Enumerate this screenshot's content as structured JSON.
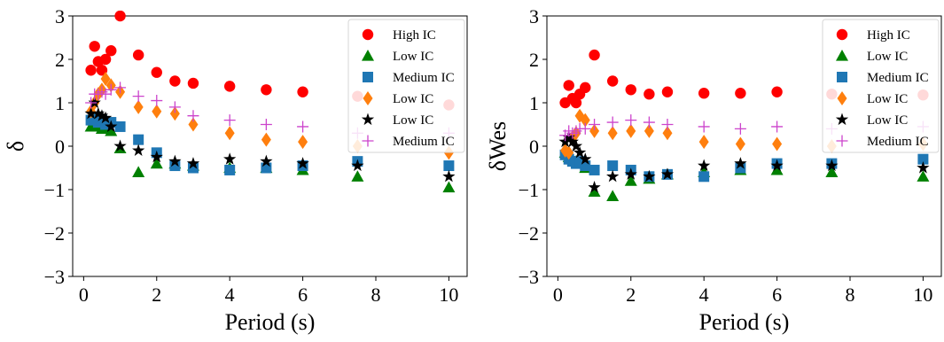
{
  "colors": {
    "High IC": "#ff0000",
    "Low IC": "#008000",
    "Medium IC": "#1f77b4",
    "Low IC orange": "#ff7f0e",
    "Low IC black": "#000000",
    "Medium IC plus": "#cc44cc"
  },
  "chart_data": [
    {
      "type": "scatter",
      "title": "",
      "xlabel": "Period (s)",
      "ylabel": "δ",
      "xlim": [
        -0.3,
        10.5
      ],
      "ylim": [
        -3,
        3
      ],
      "xticks": [
        0,
        2,
        4,
        6,
        8,
        10
      ],
      "yticks": [
        3,
        2,
        1,
        0,
        -1,
        -2,
        -3
      ],
      "ytick_labels": [
        "3",
        "2",
        "1",
        "0",
        "−1",
        "−2",
        "−3"
      ],
      "legend_position": "top-right",
      "series": [
        {
          "name": "High IC",
          "marker": "circle",
          "color": "#ff0000",
          "x": [
            0.2,
            0.3,
            0.4,
            0.5,
            0.6,
            0.75,
            1.0,
            1.5,
            2.0,
            2.5,
            3.0,
            4.0,
            5.0,
            6.0,
            7.5,
            10.0
          ],
          "y": [
            1.75,
            2.3,
            1.95,
            1.75,
            2.0,
            2.2,
            3.0,
            2.1,
            1.7,
            1.5,
            1.45,
            1.38,
            1.3,
            1.25,
            1.15,
            0.95
          ]
        },
        {
          "name": "Low IC",
          "marker": "triangle",
          "color": "#008000",
          "x": [
            0.2,
            0.3,
            0.4,
            0.5,
            0.6,
            0.75,
            1.0,
            1.5,
            2.0,
            2.5,
            3.0,
            4.0,
            5.0,
            6.0,
            7.5,
            10.0
          ],
          "y": [
            0.45,
            0.5,
            0.45,
            0.4,
            0.4,
            0.35,
            -0.05,
            -0.6,
            -0.4,
            -0.4,
            -0.45,
            -0.5,
            -0.5,
            -0.55,
            -0.7,
            -0.95
          ]
        },
        {
          "name": "Medium IC",
          "marker": "square",
          "color": "#1f77b4",
          "x": [
            0.2,
            0.3,
            0.4,
            0.5,
            0.6,
            0.75,
            1.0,
            1.5,
            2.0,
            2.5,
            3.0,
            4.0,
            5.0,
            6.0,
            7.5,
            10.0
          ],
          "y": [
            0.6,
            0.65,
            0.55,
            0.6,
            0.5,
            0.55,
            0.45,
            0.15,
            -0.15,
            -0.45,
            -0.5,
            -0.55,
            -0.5,
            -0.45,
            -0.35,
            -0.45
          ]
        },
        {
          "name": "Low IC",
          "marker": "diamond",
          "color": "#ff7f0e",
          "x": [
            0.2,
            0.3,
            0.4,
            0.5,
            0.6,
            0.75,
            1.0,
            1.5,
            2.0,
            2.5,
            3.0,
            4.0,
            5.0,
            6.0,
            7.5,
            10.0
          ],
          "y": [
            0.8,
            1.0,
            1.2,
            1.3,
            1.55,
            1.4,
            1.25,
            0.9,
            0.8,
            0.75,
            0.5,
            0.3,
            0.15,
            0.1,
            0.0,
            -0.15
          ]
        },
        {
          "name": "Low IC",
          "marker": "star",
          "color": "#000000",
          "x": [
            0.2,
            0.3,
            0.4,
            0.5,
            0.6,
            0.75,
            1.0,
            1.5,
            2.0,
            2.5,
            3.0,
            4.0,
            5.0,
            6.0,
            7.5,
            10.0
          ],
          "y": [
            0.75,
            1.0,
            0.75,
            0.7,
            0.65,
            0.45,
            0.0,
            -0.1,
            -0.25,
            -0.35,
            -0.4,
            -0.3,
            -0.35,
            -0.4,
            -0.45,
            -0.7
          ]
        },
        {
          "name": "Medium IC",
          "marker": "plus",
          "color": "#cc44cc",
          "x": [
            0.2,
            0.3,
            0.4,
            0.5,
            0.6,
            0.75,
            1.0,
            1.5,
            2.0,
            2.5,
            3.0,
            4.0,
            5.0,
            6.0,
            7.5,
            10.0
          ],
          "y": [
            1.0,
            1.2,
            1.2,
            1.25,
            1.2,
            1.3,
            1.35,
            1.15,
            1.05,
            0.9,
            0.7,
            0.6,
            0.5,
            0.45,
            0.3,
            0.3
          ]
        }
      ]
    },
    {
      "type": "scatter",
      "title": "",
      "xlabel": "Period (s)",
      "ylabel": "δWes",
      "xlim": [
        -0.3,
        10.5
      ],
      "ylim": [
        -3,
        3
      ],
      "xticks": [
        0,
        2,
        4,
        6,
        8,
        10
      ],
      "yticks": [
        3,
        2,
        1,
        0,
        -1,
        -2,
        -3
      ],
      "ytick_labels": [
        "3",
        "2",
        "1",
        "0",
        "−1",
        "−2",
        "−3"
      ],
      "legend_position": "top-right",
      "series": [
        {
          "name": "High IC",
          "marker": "circle",
          "color": "#ff0000",
          "x": [
            0.2,
            0.3,
            0.4,
            0.5,
            0.6,
            0.75,
            1.0,
            1.5,
            2.0,
            2.5,
            3.0,
            4.0,
            5.0,
            6.0,
            7.5,
            10.0
          ],
          "y": [
            1.0,
            1.4,
            1.1,
            1.0,
            1.2,
            1.35,
            2.1,
            1.5,
            1.3,
            1.2,
            1.25,
            1.22,
            1.22,
            1.25,
            1.2,
            1.18
          ]
        },
        {
          "name": "Low IC",
          "marker": "triangle",
          "color": "#008000",
          "x": [
            0.2,
            0.3,
            0.4,
            0.5,
            0.6,
            0.75,
            1.0,
            1.5,
            2.0,
            2.5,
            3.0,
            4.0,
            5.0,
            6.0,
            7.5,
            10.0
          ],
          "y": [
            -0.15,
            -0.25,
            -0.3,
            -0.35,
            -0.4,
            -0.5,
            -1.05,
            -1.15,
            -0.8,
            -0.75,
            -0.65,
            -0.6,
            -0.55,
            -0.55,
            -0.6,
            -0.7
          ]
        },
        {
          "name": "Medium IC",
          "marker": "square",
          "color": "#1f77b4",
          "x": [
            0.2,
            0.3,
            0.4,
            0.5,
            0.6,
            0.75,
            1.0,
            1.5,
            2.0,
            2.5,
            3.0,
            4.0,
            5.0,
            6.0,
            7.5,
            10.0
          ],
          "y": [
            -0.2,
            -0.3,
            -0.35,
            -0.4,
            -0.35,
            -0.45,
            -0.55,
            -0.45,
            -0.55,
            -0.7,
            -0.65,
            -0.7,
            -0.5,
            -0.4,
            -0.4,
            -0.3
          ]
        },
        {
          "name": "Low IC",
          "marker": "diamond",
          "color": "#ff7f0e",
          "x": [
            0.2,
            0.3,
            0.4,
            0.5,
            0.6,
            0.75,
            1.0,
            1.5,
            2.0,
            2.5,
            3.0,
            4.0,
            5.0,
            6.0,
            7.5,
            10.0
          ],
          "y": [
            -0.1,
            -0.15,
            0.2,
            0.3,
            0.7,
            0.6,
            0.35,
            0.3,
            0.35,
            0.35,
            0.3,
            0.1,
            0.05,
            0.05,
            0.0,
            0.05
          ]
        },
        {
          "name": "Low IC",
          "marker": "star",
          "color": "#000000",
          "x": [
            0.2,
            0.3,
            0.4,
            0.5,
            0.6,
            0.75,
            1.0,
            1.5,
            2.0,
            2.5,
            3.0,
            4.0,
            5.0,
            6.0,
            7.5,
            10.0
          ],
          "y": [
            0.1,
            0.2,
            0.1,
            0.0,
            -0.15,
            -0.3,
            -0.95,
            -0.7,
            -0.65,
            -0.7,
            -0.65,
            -0.45,
            -0.4,
            -0.45,
            -0.45,
            -0.5
          ]
        },
        {
          "name": "Medium IC",
          "marker": "plus",
          "color": "#cc44cc",
          "x": [
            0.2,
            0.3,
            0.4,
            0.5,
            0.6,
            0.75,
            1.0,
            1.5,
            2.0,
            2.5,
            3.0,
            4.0,
            5.0,
            6.0,
            7.5,
            10.0
          ],
          "y": [
            0.25,
            0.35,
            0.3,
            0.35,
            0.4,
            0.4,
            0.5,
            0.55,
            0.6,
            0.55,
            0.5,
            0.45,
            0.4,
            0.45,
            0.4,
            0.45
          ]
        }
      ]
    }
  ]
}
